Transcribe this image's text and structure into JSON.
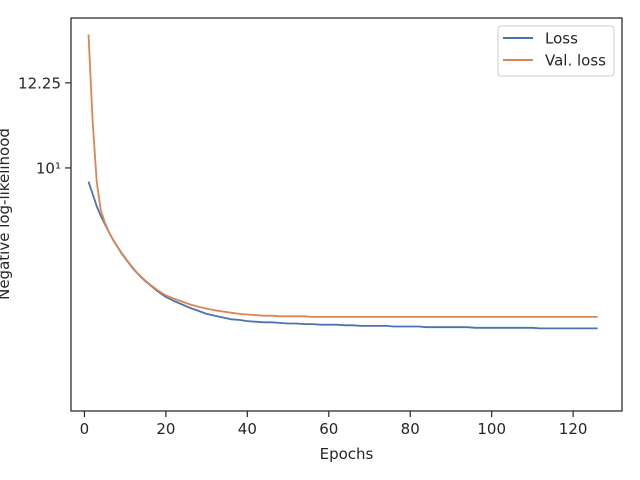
{
  "chart_data": {
    "type": "line",
    "xlabel": "Epochs",
    "ylabel": "Negative log-likelihood",
    "yscale": "log",
    "xlim": [
      -3.3,
      132
    ],
    "ylim": [
      5.6,
      14.3
    ],
    "xticks": [
      0,
      20,
      40,
      60,
      80,
      100,
      120
    ],
    "xtick_labels": [
      "0",
      "20",
      "40",
      "60",
      "80",
      "100",
      "120"
    ],
    "yticks": [
      10,
      12.25
    ],
    "ytick_labels": [
      "10¹",
      "12.25"
    ],
    "grid": false,
    "legend_position": "top-right",
    "x": [
      1,
      2,
      3,
      4,
      5,
      6,
      7,
      8,
      9,
      10,
      11,
      12,
      13,
      14,
      15,
      16,
      17,
      18,
      19,
      20,
      22,
      24,
      26,
      28,
      30,
      32,
      34,
      36,
      38,
      40,
      42,
      44,
      46,
      48,
      50,
      52,
      54,
      56,
      58,
      60,
      62,
      64,
      66,
      68,
      70,
      72,
      74,
      76,
      78,
      80,
      82,
      84,
      86,
      88,
      90,
      92,
      94,
      96,
      98,
      100,
      102,
      104,
      106,
      108,
      110,
      112,
      114,
      116,
      118,
      120,
      122,
      124,
      126
    ],
    "series": [
      {
        "name": "Loss",
        "color": "#4c72b0",
        "values": [
          9.68,
          9.4,
          9.13,
          8.92,
          8.75,
          8.58,
          8.43,
          8.3,
          8.17,
          8.06,
          7.96,
          7.86,
          7.78,
          7.7,
          7.63,
          7.57,
          7.51,
          7.45,
          7.4,
          7.35,
          7.28,
          7.22,
          7.16,
          7.11,
          7.06,
          7.03,
          7.0,
          6.97,
          6.96,
          6.94,
          6.93,
          6.92,
          6.92,
          6.91,
          6.9,
          6.9,
          6.89,
          6.89,
          6.88,
          6.88,
          6.88,
          6.87,
          6.87,
          6.86,
          6.86,
          6.86,
          6.86,
          6.85,
          6.85,
          6.85,
          6.85,
          6.84,
          6.84,
          6.84,
          6.84,
          6.84,
          6.84,
          6.83,
          6.83,
          6.83,
          6.83,
          6.83,
          6.83,
          6.83,
          6.83,
          6.82,
          6.82,
          6.82,
          6.82,
          6.82,
          6.82,
          6.82,
          6.82
        ]
      },
      {
        "name": "Val. loss",
        "color": "#dd8452",
        "values": [
          13.75,
          11.2,
          9.68,
          9.05,
          8.78,
          8.58,
          8.43,
          8.3,
          8.18,
          8.07,
          7.97,
          7.87,
          7.78,
          7.71,
          7.64,
          7.58,
          7.52,
          7.47,
          7.42,
          7.38,
          7.32,
          7.27,
          7.22,
          7.18,
          7.15,
          7.12,
          7.1,
          7.08,
          7.06,
          7.05,
          7.04,
          7.03,
          7.03,
          7.02,
          7.02,
          7.02,
          7.02,
          7.01,
          7.01,
          7.01,
          7.01,
          7.01,
          7.01,
          7.01,
          7.01,
          7.01,
          7.01,
          7.01,
          7.01,
          7.01,
          7.01,
          7.01,
          7.01,
          7.01,
          7.01,
          7.01,
          7.01,
          7.01,
          7.01,
          7.01,
          7.01,
          7.01,
          7.01,
          7.01,
          7.01,
          7.01,
          7.01,
          7.01,
          7.01,
          7.01,
          7.01,
          7.01,
          7.01
        ]
      }
    ]
  }
}
